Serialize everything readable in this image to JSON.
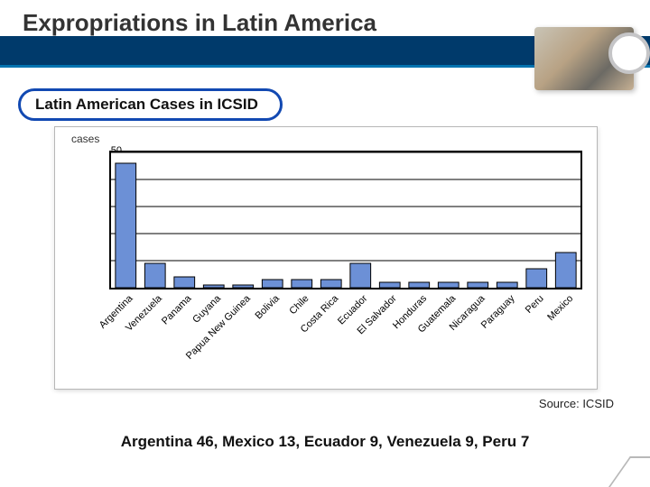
{
  "title": "Expropriations in Latin America",
  "subtitle": "Latin American Cases in ICSID",
  "chart": {
    "type": "bar",
    "axis_label": "cases",
    "ylim": [
      0,
      50
    ],
    "ytick_step": 10,
    "yticks": [
      "0",
      "10",
      "20",
      "30",
      "40",
      "50"
    ],
    "categories": [
      "Argentina",
      "Venezuela",
      "Panama",
      "Guyana",
      "Papua New Guinea",
      "Bolivia",
      "Chile",
      "Costa Rica",
      "Ecuador",
      "El Salvador",
      "Honduras",
      "Guatemala",
      "Nicaragua",
      "Paraguay",
      "Peru",
      "Mexico"
    ],
    "values": [
      46,
      9,
      4,
      1,
      1,
      3,
      3,
      3,
      9,
      2,
      2,
      2,
      2,
      2,
      7,
      13
    ],
    "bar_fill": "#6c90d6",
    "bar_stroke": "#000000",
    "plot_border": "#000000",
    "grid_color": "#000000",
    "background": "#ffffff",
    "bar_width_ratio": 0.7,
    "tick_fontsize": 11,
    "axis_label_fontsize": 12,
    "xlabel_rotation_deg": -45
  },
  "source": "Source: ICSID",
  "caption": "Argentina 46, Mexico 13, Ecuador 9, Venezuela 9, Peru 7",
  "colors": {
    "title_bar": "#003a6b",
    "title_bar_accent": "#0073b0",
    "pill_border": "#1249b2",
    "text": "#111111"
  }
}
